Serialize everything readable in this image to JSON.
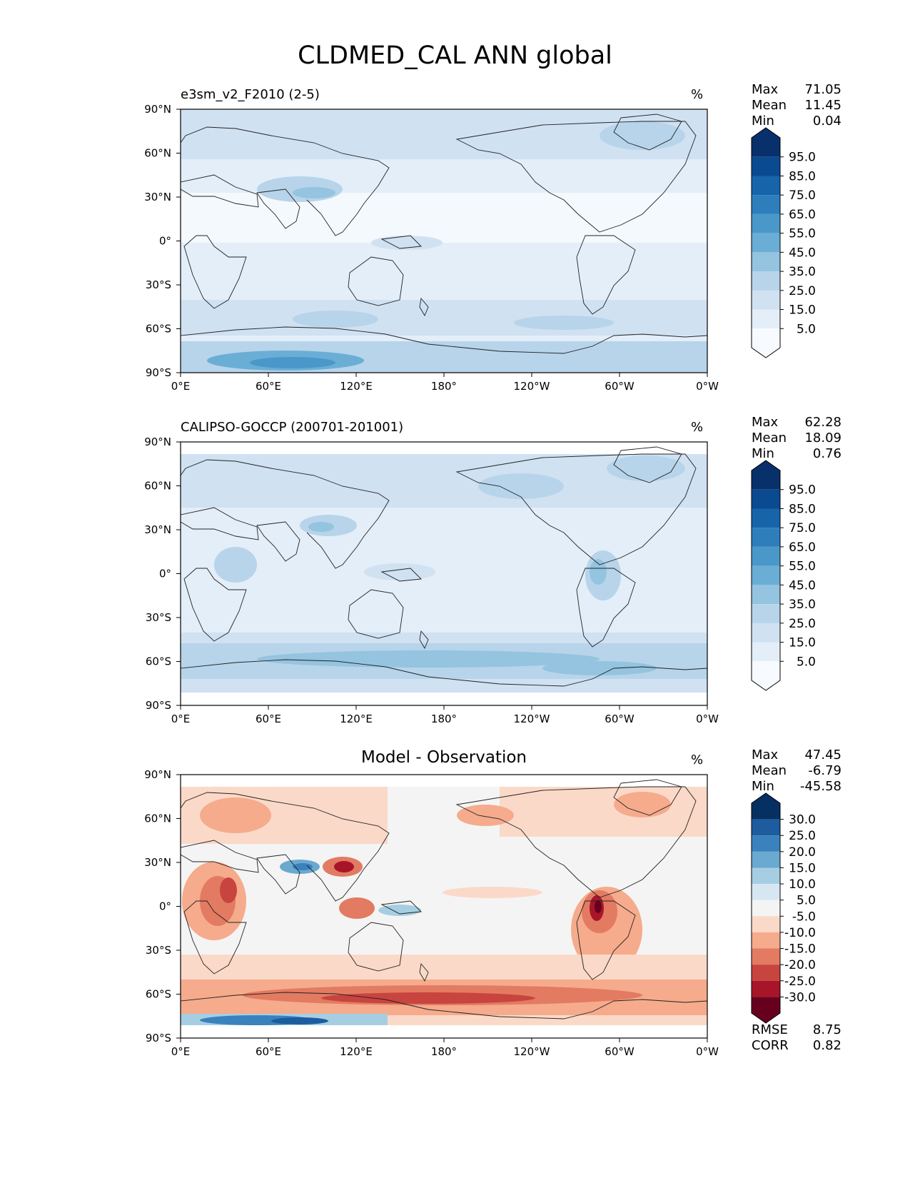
{
  "page": {
    "title": "CLDMED_CAL ANN global"
  },
  "axes": {
    "lat_ticks": [
      "90°N",
      "60°N",
      "30°N",
      "0°",
      "30°S",
      "60°S",
      "90°S"
    ],
    "lon_ticks": [
      "0°E",
      "60°E",
      "120°E",
      "180°",
      "120°W",
      "60°W",
      "0°W"
    ]
  },
  "panels": [
    {
      "label": "e3sm_v2_F2010 (2-5)",
      "units": "%",
      "stats": {
        "max_label": "Max",
        "max": "71.05",
        "mean_label": "Mean",
        "mean": "11.45",
        "min_label": "Min",
        "min": "0.04"
      },
      "colorbar": {
        "labels": [
          "95.0",
          "85.0",
          "75.0",
          "65.0",
          "55.0",
          "45.0",
          "35.0",
          "25.0",
          "15.0",
          "5.0"
        ],
        "colors": [
          "#08306b",
          "#0a4a90",
          "#1764ab",
          "#2e7ebc",
          "#4a98c9",
          "#6aaed6",
          "#94c4df",
          "#b7d4ea",
          "#d0e1f2",
          "#e3eef9",
          "#f7fbff"
        ]
      }
    },
    {
      "label": "CALIPSO-GOCCP (200701-201001)",
      "units": "%",
      "stats": {
        "max_label": "Max",
        "max": "62.28",
        "mean_label": "Mean",
        "mean": "18.09",
        "min_label": "Min",
        "min": "0.76"
      },
      "colorbar": {
        "labels": [
          "95.0",
          "85.0",
          "75.0",
          "65.0",
          "55.0",
          "45.0",
          "35.0",
          "25.0",
          "15.0",
          "5.0"
        ],
        "colors": [
          "#08306b",
          "#0a4a90",
          "#1764ab",
          "#2e7ebc",
          "#4a98c9",
          "#6aaed6",
          "#94c4df",
          "#b7d4ea",
          "#d0e1f2",
          "#e3eef9",
          "#f7fbff"
        ]
      }
    },
    {
      "label": "Model - Observation",
      "units": "%",
      "stats": {
        "max_label": "Max",
        "max": "47.45",
        "mean_label": "Mean",
        "mean": "-6.79",
        "min_label": "Min",
        "min": "-45.58"
      },
      "colorbar": {
        "labels": [
          "30.0",
          "25.0",
          "20.0",
          "15.0",
          "10.0",
          "5.0",
          "-5.0",
          "-10.0",
          "-15.0",
          "-20.0",
          "-25.0",
          "-30.0"
        ],
        "colors": [
          "#053061",
          "#1c5c9f",
          "#3a82bd",
          "#6aa9d0",
          "#a6cee3",
          "#d7e7f1",
          "#f4f4f4",
          "#fbd9c8",
          "#f5ab8c",
          "#e27b62",
          "#c8443f",
          "#a81529",
          "#67001f"
        ]
      },
      "metrics": {
        "rmse_label": "RMSE",
        "rmse": "8.75",
        "corr_label": "CORR",
        "corr": "0.82"
      }
    }
  ]
}
